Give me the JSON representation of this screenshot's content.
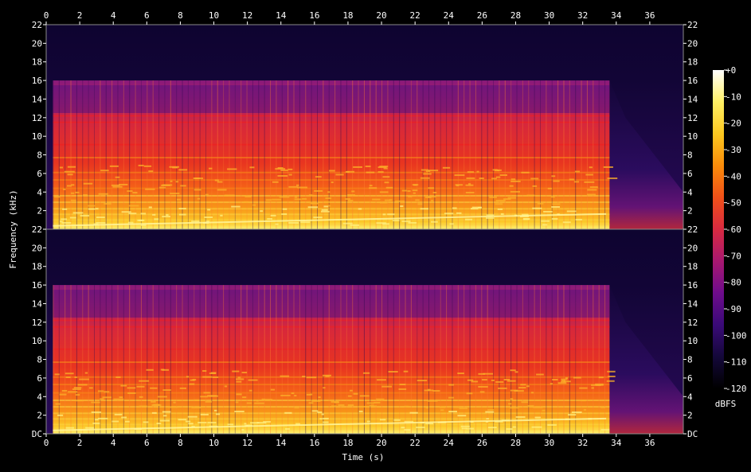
{
  "chart_data": {
    "type": "heatmap",
    "title": "",
    "xlabel": "Time (s)",
    "ylabel": "Frequency (kHz)",
    "colorbar_label": "dBFS",
    "xlim": [
      0,
      38
    ],
    "ylim": [
      0,
      22
    ],
    "x_ticks": [
      0,
      2,
      4,
      6,
      8,
      10,
      12,
      14,
      16,
      18,
      20,
      22,
      24,
      26,
      28,
      30,
      32,
      34,
      36
    ],
    "channels": [
      {
        "y_ticks": [
          {
            "value": 2,
            "label": "2"
          },
          {
            "value": 4,
            "label": "4"
          },
          {
            "value": 6,
            "label": "6"
          },
          {
            "value": 8,
            "label": "8"
          },
          {
            "value": 10,
            "label": "10"
          },
          {
            "value": 12,
            "label": "12"
          },
          {
            "value": 14,
            "label": "14"
          },
          {
            "value": 16,
            "label": "16"
          },
          {
            "value": 18,
            "label": "18"
          },
          {
            "value": 20,
            "label": "20"
          },
          {
            "value": 22,
            "label": "22"
          }
        ]
      },
      {
        "y_ticks": [
          {
            "value": 0,
            "label": "DC"
          },
          {
            "value": 2,
            "label": "2"
          },
          {
            "value": 4,
            "label": "4"
          },
          {
            "value": 6,
            "label": "6"
          },
          {
            "value": 8,
            "label": "8"
          },
          {
            "value": 10,
            "label": "10"
          },
          {
            "value": 12,
            "label": "12"
          },
          {
            "value": 14,
            "label": "14"
          },
          {
            "value": 16,
            "label": "16"
          },
          {
            "value": 18,
            "label": "18"
          },
          {
            "value": 20,
            "label": "20"
          },
          {
            "value": 22,
            "label": "22"
          }
        ]
      }
    ],
    "colorbar": {
      "range": [
        -120,
        0
      ],
      "ticks": [
        {
          "value": 0,
          "label": "+0"
        },
        {
          "value": -10,
          "label": "-10"
        },
        {
          "value": -20,
          "label": "-20"
        },
        {
          "value": -30,
          "label": "-30"
        },
        {
          "value": -40,
          "label": "-40"
        },
        {
          "value": -50,
          "label": "-50"
        },
        {
          "value": -60,
          "label": "-60"
        },
        {
          "value": -70,
          "label": "-70"
        },
        {
          "value": -80,
          "label": "-80"
        },
        {
          "value": -90,
          "label": "-90"
        },
        {
          "value": -100,
          "label": "-100"
        },
        {
          "value": -110,
          "label": "-110"
        },
        {
          "value": -120,
          "label": "-120"
        }
      ],
      "colors": [
        "#000000",
        "#14083a",
        "#3a0a78",
        "#6e0c8c",
        "#a81870",
        "#d82a40",
        "#f05018",
        "#fa8c0a",
        "#fcc820",
        "#fff064",
        "#ffffff"
      ]
    },
    "signal": {
      "start_s": 0.4,
      "end_s": 33.6,
      "cutoff_khz": 16,
      "decay_until_s": 38
    },
    "colormap": "magma-like (black → purple → red → orange → yellow → white)"
  }
}
